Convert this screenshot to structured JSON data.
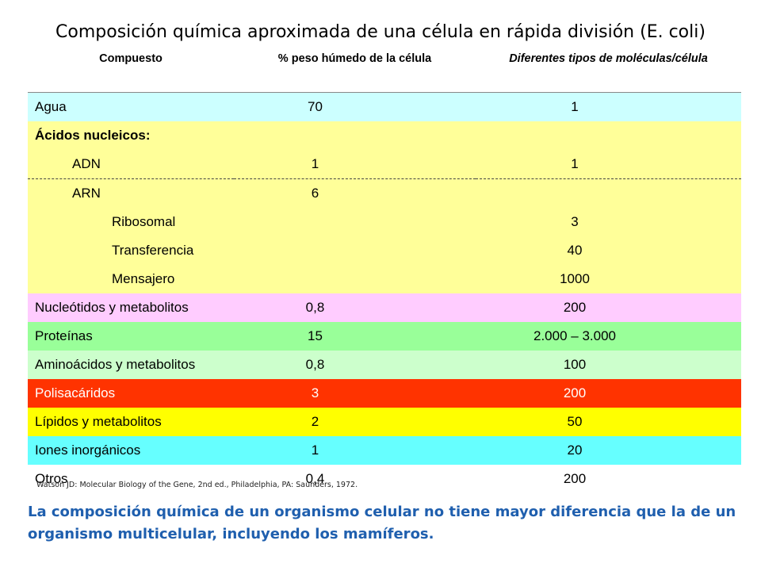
{
  "title": "Composición química aproximada de una célula en rápida división (E. coli)",
  "table": {
    "headers": [
      "Compuesto",
      "% peso húmedo de la célula",
      "Diferentes tipos de moléculas/célula"
    ],
    "rows": [
      {
        "name": "Agua",
        "peso": "70",
        "tipos": "1",
        "bg": "#ccffff",
        "fg": "#000000",
        "level": 0,
        "bold": false
      },
      {
        "name": "Ácidos nucleicos:",
        "peso": "",
        "tipos": "",
        "bg": "#ffff99",
        "fg": "#000000",
        "level": 0,
        "bold": true
      },
      {
        "name": "ADN",
        "peso": "1",
        "tipos": "1",
        "bg": "#ffff99",
        "fg": "#000000",
        "level": 1,
        "bold": false,
        "dashed": true
      },
      {
        "name": "ARN",
        "peso": "6",
        "tipos": "",
        "bg": "#ffff99",
        "fg": "#000000",
        "level": 1,
        "bold": false
      },
      {
        "name": "Ribosomal",
        "peso": "",
        "tipos": "3",
        "bg": "#ffff99",
        "fg": "#000000",
        "level": 2,
        "bold": false
      },
      {
        "name": "Transferencia",
        "peso": "",
        "tipos": "40",
        "bg": "#ffff99",
        "fg": "#000000",
        "level": 2,
        "bold": false
      },
      {
        "name": "Mensajero",
        "peso": "",
        "tipos": "1000",
        "bg": "#ffff99",
        "fg": "#000000",
        "level": 2,
        "bold": false
      },
      {
        "name": "Nucleótidos y metabolitos",
        "peso": "0,8",
        "tipos": "200",
        "bg": "#ffccff",
        "fg": "#000000",
        "level": 0,
        "bold": false
      },
      {
        "name": "Proteínas",
        "peso": "15",
        "tipos": "2.000 – 3.000",
        "bg": "#99ff99",
        "fg": "#000000",
        "level": 0,
        "bold": false
      },
      {
        "name": "Aminoácidos y metabolitos",
        "peso": "0,8",
        "tipos": "100",
        "bg": "#ccffcc",
        "fg": "#000000",
        "level": 0,
        "bold": false
      },
      {
        "name": "Polisacáridos",
        "peso": "3",
        "tipos": "200",
        "bg": "#ff3300",
        "fg": "#ffffff",
        "level": 0,
        "bold": false
      },
      {
        "name": "Lípidos y metabolitos",
        "peso": "2",
        "tipos": "50",
        "bg": "#ffff00",
        "fg": "#000000",
        "level": 0,
        "bold": false
      },
      {
        "name": "Iones inorgánicos",
        "peso": "1",
        "tipos": "20",
        "bg": "#66ffff",
        "fg": "#000000",
        "level": 0,
        "bold": false
      },
      {
        "name": "Otros",
        "peso": "0,4",
        "tipos": "200",
        "bg": "#ffffff",
        "fg": "#000000",
        "level": 0,
        "bold": false
      }
    ]
  },
  "source": "Watson JD: Molecular Biology of the Gene, 2nd ed., Philadelphia, PA: Saunders, 1972.",
  "note": "La composición química de un organismo celular no tiene mayor diferencia que la de un organismo multicelular, incluyendo los mamíferos."
}
